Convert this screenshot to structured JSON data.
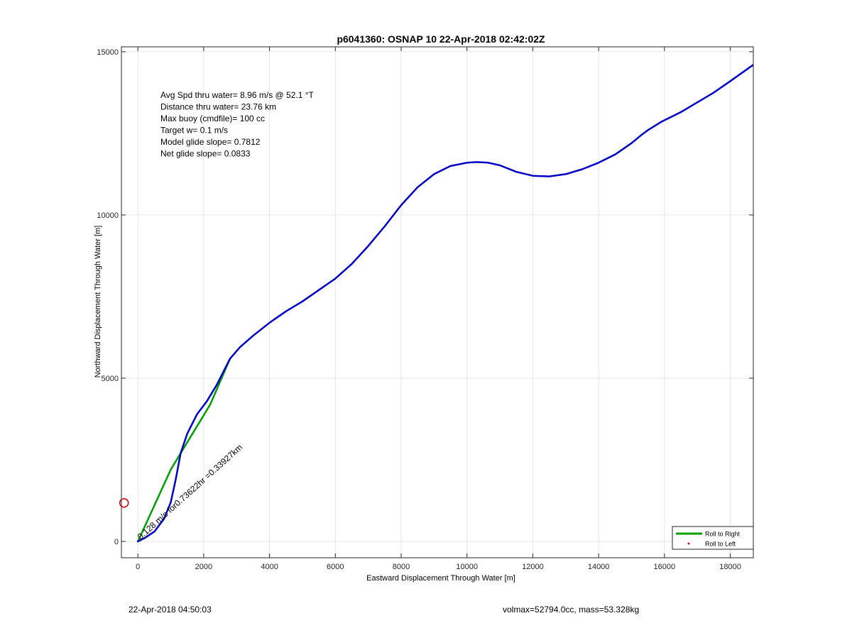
{
  "chart_data": {
    "type": "line",
    "title": "p6041360: OSNAP 10 22-Apr-2018 02:42:02Z",
    "xlabel": "Eastward Displacement Through Water [m]",
    "ylabel": "Northward Displacement Through Water [m]",
    "xlim": [
      -500,
      18700
    ],
    "ylim": [
      -500,
      15150
    ],
    "xticks": [
      0,
      2000,
      4000,
      6000,
      8000,
      10000,
      12000,
      14000,
      16000,
      18000
    ],
    "yticks": [
      0,
      5000,
      10000,
      15000
    ],
    "grid": true,
    "legend_position": "bottom-right",
    "legend": [
      {
        "label": "Roll to Right",
        "color": "#00a000",
        "marker": "line"
      },
      {
        "label": "Roll to Left",
        "color": "#ff0000",
        "marker": "dot"
      }
    ],
    "annotations": [
      "Avg Spd thru water=  8.96 m/s @  52.1 °T",
      "Distance thru water= 23.76 km",
      "Max buoy (cmdfile)= 100 cc",
      "Target w= 0.1 m/s",
      "Model glide slope= 0.7812",
      "Net glide slope= 0.0833"
    ],
    "rotated_label": "0.128 m/s for0.73622hr =0.33927km",
    "marker_point": {
      "x": -420,
      "y": 1180,
      "color": "#d00000"
    },
    "series": [
      {
        "color": "#0000c8",
        "x": [
          0,
          200,
          500,
          800,
          1000,
          1150,
          1300,
          1500,
          1800,
          2100,
          2400,
          2600,
          2800,
          3100,
          3500,
          4000,
          4500,
          5000,
          5500,
          6000,
          6500,
          7000,
          7500,
          8000,
          8500,
          9000,
          9500,
          10000,
          10300,
          10650,
          11000,
          11500,
          12000,
          12500,
          13000,
          13500,
          14000,
          14500,
          15000,
          15300,
          15500,
          15900,
          16500,
          17000,
          17500,
          18000,
          18700
        ],
        "y": [
          0,
          100,
          300,
          700,
          1200,
          1900,
          2700,
          3300,
          3900,
          4300,
          4800,
          5200,
          5600,
          5950,
          6300,
          6700,
          7050,
          7350,
          7700,
          8050,
          8500,
          9050,
          9650,
          10300,
          10850,
          11250,
          11500,
          11600,
          11620,
          11600,
          11520,
          11320,
          11200,
          11180,
          11250,
          11400,
          11600,
          11850,
          12200,
          12450,
          12600,
          12850,
          13150,
          13450,
          13750,
          14100,
          14600
        ]
      },
      {
        "color": "#00a000",
        "x": [
          0,
          500,
          1000,
          1300,
          1600,
          1900,
          2200,
          2500,
          2800
        ],
        "y": [
          0,
          1100,
          2200,
          2700,
          3200,
          3700,
          4200,
          4900,
          5600
        ]
      }
    ]
  },
  "footer": {
    "left": "22-Apr-2018 04:50:03",
    "right": "volmax=52794.0cc, mass=53.328kg"
  }
}
